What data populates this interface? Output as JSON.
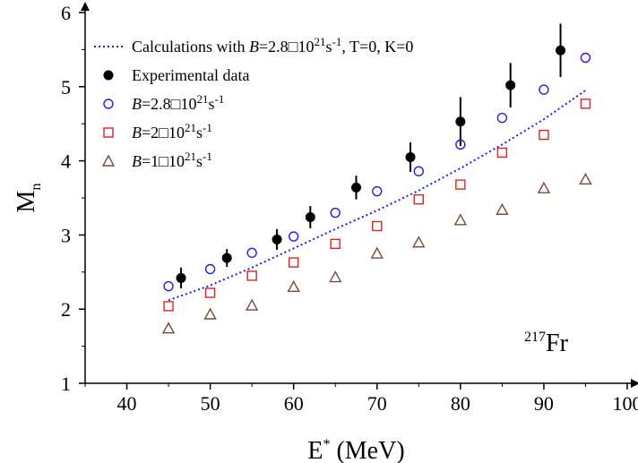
{
  "chart_data": {
    "type": "scatter",
    "title": "",
    "xlabel": "E* (MeV)",
    "ylabel": "Mn",
    "xlim": [
      35,
      100
    ],
    "ylim": [
      1,
      6
    ],
    "x_ticks": [
      40,
      50,
      60,
      70,
      80,
      90,
      100
    ],
    "y_ticks": [
      1,
      2,
      3,
      4,
      5,
      6
    ],
    "x_ticklabels": [
      "40",
      "50",
      "60",
      "70",
      "80",
      "90",
      "100"
    ],
    "y_ticklabels": [
      "1",
      "2",
      "3",
      "4",
      "5",
      "6"
    ],
    "grid": false,
    "legend_position": "top-left",
    "annotation": {
      "mass": "217",
      "element": "Fr"
    },
    "series": [
      {
        "name": "Calculations with B=2.8□10²¹s⁻¹, T=0, K=0",
        "legend_parts": {
          "pre": "Calculations with ",
          "italic": "B",
          "mid": "=2.8□10",
          "sup1": "21",
          "s": "s",
          "sup2": "-1",
          "post": ", T=0, K=0"
        },
        "marker": "dotted-line",
        "color": "#1f1fdf",
        "x": [
          45,
          50,
          55,
          60,
          65,
          70,
          75,
          80,
          85,
          90,
          95
        ],
        "y": [
          2.12,
          2.32,
          2.56,
          2.82,
          3.08,
          3.33,
          3.6,
          3.9,
          4.22,
          4.56,
          4.95
        ]
      },
      {
        "name": "Experimental data",
        "legend_parts": {
          "pre": "Experimental data"
        },
        "marker": "filled-circle",
        "color": "#000000",
        "x": [
          46.5,
          52,
          58,
          62,
          67.5,
          74,
          80,
          86,
          92
        ],
        "y": [
          2.42,
          2.69,
          2.94,
          3.24,
          3.64,
          4.05,
          4.53,
          5.02,
          5.49
        ],
        "yerr": [
          0.14,
          0.12,
          0.14,
          0.15,
          0.16,
          0.2,
          0.33,
          0.3,
          0.36
        ]
      },
      {
        "name": "B=2.8□10²¹s⁻¹",
        "legend_parts": {
          "italic": "B",
          "mid": "=2.8□10",
          "sup1": "21",
          "s": "s",
          "sup2": "-1"
        },
        "marker": "open-circle",
        "color": "#1f1fdf",
        "x": [
          45,
          50,
          55,
          60,
          65,
          70,
          75,
          80,
          85,
          90,
          95
        ],
        "y": [
          2.31,
          2.54,
          2.76,
          2.98,
          3.3,
          3.59,
          3.86,
          4.22,
          4.58,
          4.96,
          5.39
        ]
      },
      {
        "name": "B=2□10²¹s⁻¹",
        "legend_parts": {
          "italic": "B",
          "mid": "=2□10",
          "sup1": "21",
          "s": "s",
          "sup2": "-1"
        },
        "marker": "open-square",
        "color": "#e02020",
        "x": [
          45,
          50,
          55,
          60,
          65,
          70,
          75,
          80,
          85,
          90,
          95
        ],
        "y": [
          2.04,
          2.22,
          2.45,
          2.63,
          2.88,
          3.12,
          3.48,
          3.68,
          4.11,
          4.35,
          4.77
        ]
      },
      {
        "name": "B=1□10²¹s⁻¹",
        "legend_parts": {
          "italic": "B",
          "mid": "=1□10",
          "sup1": "21",
          "s": "s",
          "sup2": "-1"
        },
        "marker": "open-triangle",
        "color": "#7a4a3a",
        "x": [
          45,
          50,
          55,
          60,
          65,
          70,
          75,
          80,
          85,
          90,
          95
        ],
        "y": [
          1.74,
          1.93,
          2.05,
          2.3,
          2.43,
          2.75,
          2.9,
          3.2,
          3.34,
          3.63,
          3.75
        ]
      }
    ]
  }
}
